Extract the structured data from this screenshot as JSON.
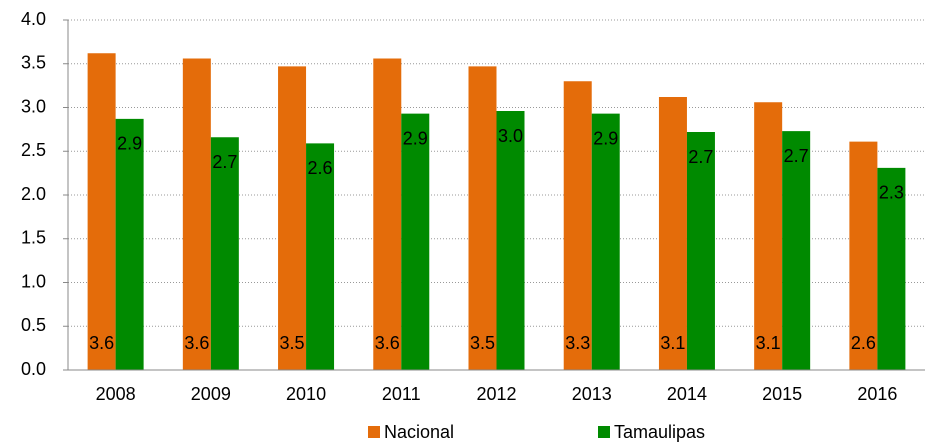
{
  "chart_data": {
    "type": "bar",
    "categories": [
      "2008",
      "2009",
      "2010",
      "2011",
      "2012",
      "2013",
      "2014",
      "2015",
      "2016"
    ],
    "series": [
      {
        "name": "Nacional",
        "color": "#e46c0a",
        "values": [
          3.62,
          3.56,
          3.47,
          3.56,
          3.47,
          3.3,
          3.12,
          3.06,
          2.61
        ],
        "value_labels": [
          "3.6",
          "3.6",
          "3.5",
          "3.6",
          "3.5",
          "3.3",
          "3.1",
          "3.1",
          "2.6"
        ]
      },
      {
        "name": "Tamaulipas",
        "color": "#008a00",
        "values": [
          2.87,
          2.66,
          2.59,
          2.93,
          2.96,
          2.93,
          2.72,
          2.73,
          2.31
        ],
        "value_labels": [
          "2.9",
          "2.7",
          "2.6",
          "2.9",
          "3.0",
          "2.9",
          "2.7",
          "2.7",
          "2.3"
        ]
      }
    ],
    "ylim": [
      0,
      4
    ],
    "yticks": [
      {
        "value": 0,
        "label": "0.0"
      },
      {
        "value": 0.5,
        "label": "0.5"
      },
      {
        "value": 1,
        "label": "1.0"
      },
      {
        "value": 1.5,
        "label": "1.5"
      },
      {
        "value": 2,
        "label": "2.0"
      },
      {
        "value": 2.5,
        "label": "2.5"
      },
      {
        "value": 3,
        "label": "3.0"
      },
      {
        "value": 3.5,
        "label": "3.5"
      },
      {
        "value": 4,
        "label": "4.0"
      }
    ],
    "grid": true,
    "legend": "bottom"
  }
}
